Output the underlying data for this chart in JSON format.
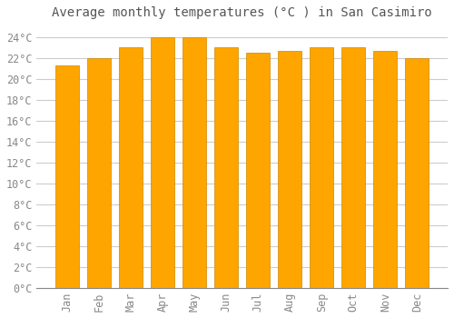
{
  "title": "Average monthly temperatures (°C ) in San Casimiro",
  "months": [
    "Jan",
    "Feb",
    "Mar",
    "Apr",
    "May",
    "Jun",
    "Jul",
    "Aug",
    "Sep",
    "Oct",
    "Nov",
    "Dec"
  ],
  "values": [
    21.3,
    22.0,
    23.0,
    24.0,
    24.0,
    23.0,
    22.5,
    22.7,
    23.0,
    23.0,
    22.7,
    22.0
  ],
  "bar_color": "#FFA500",
  "bar_edge_color": "#CC8800",
  "background_color": "#FFFFFF",
  "grid_color": "#CCCCCC",
  "tick_label_color": "#888888",
  "title_color": "#555555",
  "ylim": [
    0,
    25
  ],
  "yticks": [
    0,
    2,
    4,
    6,
    8,
    10,
    12,
    14,
    16,
    18,
    20,
    22,
    24
  ],
  "ytick_suffix": "°C",
  "title_fontsize": 10,
  "tick_fontsize": 8.5
}
